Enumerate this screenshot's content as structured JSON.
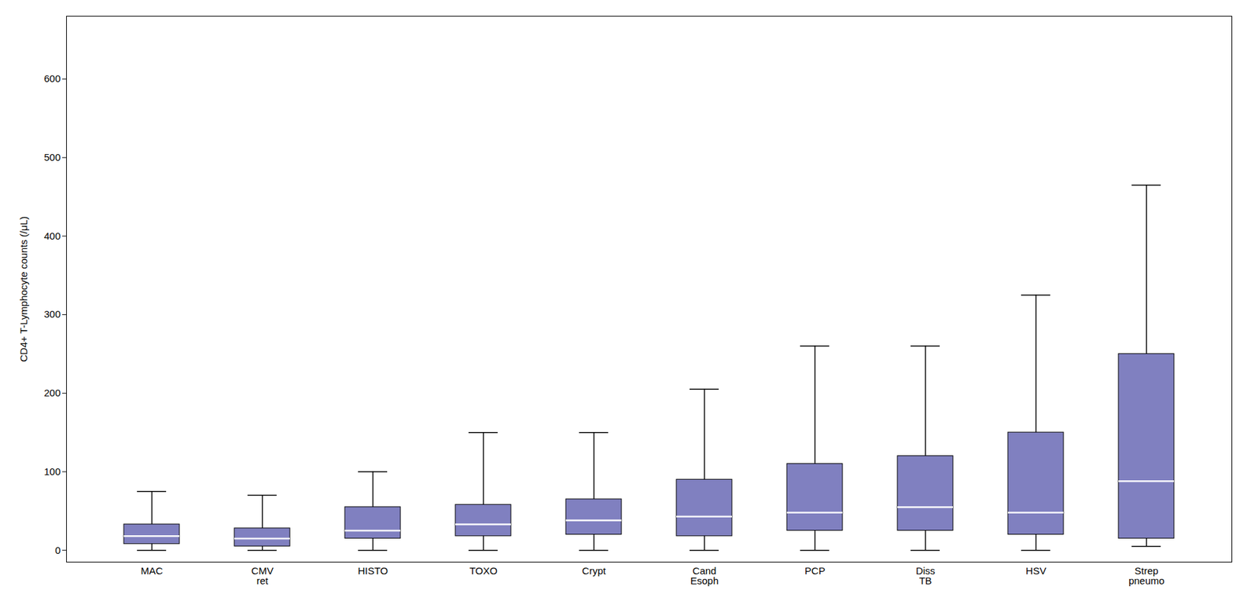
{
  "chart_data": {
    "type": "box",
    "categories": [
      "MAC",
      "CMV\nret",
      "HISTO",
      "TOXO",
      "Crypt",
      "Cand\nEsoph",
      "PCP",
      "Diss\nTB",
      "HSV",
      "Strep\npneumo"
    ],
    "boxes": [
      {
        "whislo": 0,
        "q1": 8,
        "med": 18,
        "q3": 33,
        "whishi": 75
      },
      {
        "whislo": 0,
        "q1": 5,
        "med": 15,
        "q3": 28,
        "whishi": 70
      },
      {
        "whislo": 0,
        "q1": 15,
        "med": 25,
        "q3": 55,
        "whishi": 100
      },
      {
        "whislo": 0,
        "q1": 18,
        "med": 33,
        "q3": 58,
        "whishi": 150
      },
      {
        "whislo": 0,
        "q1": 20,
        "med": 38,
        "q3": 65,
        "whishi": 150
      },
      {
        "whislo": 0,
        "q1": 18,
        "med": 43,
        "q3": 90,
        "whishi": 205
      },
      {
        "whislo": 0,
        "q1": 25,
        "med": 48,
        "q3": 110,
        "whishi": 260
      },
      {
        "whislo": 0,
        "q1": 25,
        "med": 55,
        "q3": 120,
        "whishi": 260
      },
      {
        "whislo": 0,
        "q1": 20,
        "med": 48,
        "q3": 150,
        "whishi": 325
      },
      {
        "whislo": 5,
        "q1": 15,
        "med": 88,
        "q3": 250,
        "whishi": 465
      }
    ],
    "color": "#8080c0",
    "ylabel": "CD4+ T-Lymphocyte counts (/μL)",
    "ylim": [
      -15,
      680
    ],
    "yticks": [
      0,
      100,
      200,
      300,
      400,
      500,
      600
    ],
    "grid": false
  }
}
